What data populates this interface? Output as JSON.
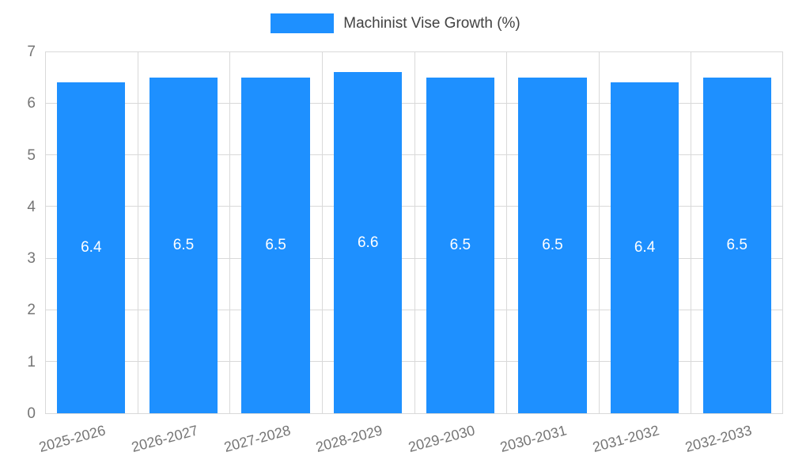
{
  "chart_data": {
    "type": "bar",
    "title": "",
    "legend_label": "Machinist Vise Growth (%)",
    "legend_position": "top",
    "categories": [
      "2025-2026",
      "2026-2027",
      "2027-2028",
      "2028-2029",
      "2029-2030",
      "2030-2031",
      "2031-2032",
      "2032-2033"
    ],
    "values": [
      6.4,
      6.5,
      6.5,
      6.6,
      6.5,
      6.5,
      6.4,
      6.5
    ],
    "value_labels": [
      "6.4",
      "6.5",
      "6.5",
      "6.6",
      "6.5",
      "6.5",
      "6.4",
      "6.5"
    ],
    "xlabel": "",
    "ylabel": "",
    "ylim": [
      0,
      7
    ],
    "yticks": [
      0,
      1,
      2,
      3,
      4,
      5,
      6,
      7
    ],
    "grid": true,
    "bar_color": "#1e90ff",
    "value_label_color": "#ffffff",
    "axis_text_color": "#757575",
    "gridline_color": "#d9d9d9",
    "legend_text_color": "#424242"
  }
}
